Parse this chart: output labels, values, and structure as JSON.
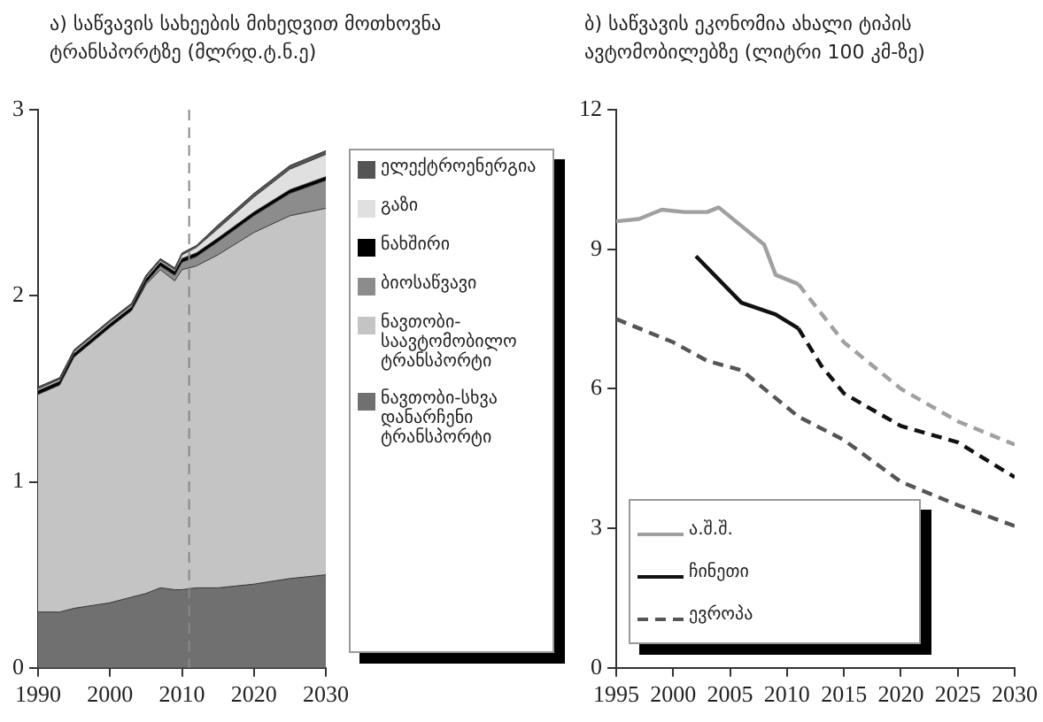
{
  "chart_data": [
    {
      "type": "area",
      "title": "ა) საწვავის სახეების მიხედვით მოთხოვნა ტრანსპორტზე (მლრდ.ტ.ნ.ე)",
      "stacked": true,
      "legend": "right",
      "x": [
        1990,
        1993,
        1995,
        2000,
        2003,
        2005,
        2007,
        2009,
        2010,
        2012,
        2015,
        2020,
        2025,
        2030
      ],
      "xlim": [
        1990,
        2030
      ],
      "xticks": [
        1990,
        2000,
        2010,
        2020,
        2030
      ],
      "ylim": [
        0,
        3
      ],
      "yticks": [
        0,
        1,
        2,
        3
      ],
      "ref_lines": [
        {
          "axis": "x",
          "value": 2011,
          "color": "#888888",
          "line_style": "dashed"
        }
      ],
      "series": [
        {
          "name": "ნავთობი-სხვა დანარჩენი ტრანსპორტი",
          "color": "#707070",
          "values": [
            0.3,
            0.3,
            0.32,
            0.35,
            0.38,
            0.4,
            0.43,
            0.42,
            0.42,
            0.43,
            0.43,
            0.45,
            0.48,
            0.5
          ]
        },
        {
          "name": "ნავთობი-საავტომობილო ტრანსპორტი",
          "color": "#c4c4c4",
          "values": [
            1.17,
            1.22,
            1.35,
            1.48,
            1.54,
            1.66,
            1.71,
            1.66,
            1.72,
            1.73,
            1.79,
            1.89,
            1.95,
            1.97
          ]
        },
        {
          "name": "ბიოსაწვავი",
          "color": "#8c8c8c",
          "values": [
            0,
            0,
            0,
            0,
            0,
            0.01,
            0.02,
            0.03,
            0.04,
            0.05,
            0.07,
            0.09,
            0.12,
            0.15
          ]
        },
        {
          "name": "ნახშირი",
          "color": "#000000",
          "values": [
            0.02,
            0.02,
            0.02,
            0.02,
            0.02,
            0.02,
            0.02,
            0.02,
            0.02,
            0.02,
            0.02,
            0.02,
            0.02,
            0.02
          ]
        },
        {
          "name": "გაზი",
          "color": "#e0e0e0",
          "values": [
            0.01,
            0.01,
            0.01,
            0.01,
            0.01,
            0.01,
            0.01,
            0.01,
            0.02,
            0.03,
            0.05,
            0.08,
            0.11,
            0.12
          ]
        },
        {
          "name": "ელექტროენერგია",
          "color": "#555555",
          "values": [
            0.01,
            0.01,
            0.01,
            0.01,
            0.01,
            0.01,
            0.01,
            0.01,
            0.01,
            0.01,
            0.02,
            0.02,
            0.02,
            0.02
          ]
        }
      ]
    },
    {
      "type": "line",
      "title": "ბ) საწვავის ეკონომია ახალი ტიპის ავტომობილებზე (ლიტრი 100 კმ-ზე)",
      "legend": "bottom left",
      "xlim": [
        1995,
        2030
      ],
      "xticks": [
        1995,
        2000,
        2005,
        2010,
        2015,
        2020,
        2025,
        2030
      ],
      "ylim": [
        0,
        12
      ],
      "yticks": [
        0,
        3,
        6,
        9,
        12
      ],
      "series": [
        {
          "name": "ა.შ.შ.",
          "color": "#a0a0a0",
          "x": [
            1995,
            1997,
            1999,
            2001,
            2003,
            2004,
            2006,
            2008,
            2009,
            2011
          ],
          "values": [
            9.6,
            9.65,
            9.85,
            9.8,
            9.8,
            9.9,
            9.5,
            9.1,
            8.45,
            8.25
          ]
        },
        {
          "color": "#a0a0a0",
          "line_style": "dashed",
          "x": [
            2011,
            2015,
            2020,
            2025,
            2030
          ],
          "values": [
            8.25,
            7.0,
            6.0,
            5.3,
            4.8
          ]
        },
        {
          "name": "ჩინეთი",
          "color": "#111111",
          "x": [
            2002,
            2006,
            2009,
            2011
          ],
          "values": [
            8.85,
            7.85,
            7.6,
            7.3
          ]
        },
        {
          "color": "#111111",
          "line_style": "dashed",
          "x": [
            2011,
            2013,
            2015,
            2020,
            2025,
            2030
          ],
          "values": [
            7.3,
            6.5,
            5.9,
            5.2,
            4.85,
            4.1
          ]
        },
        {
          "name": "ევროპა",
          "color": "#555555",
          "line_style": "dashed",
          "x": [
            1995,
            2000,
            2003,
            2006,
            2008,
            2011,
            2015,
            2020,
            2025,
            2030
          ],
          "values": [
            7.5,
            7.0,
            6.6,
            6.4,
            6.0,
            5.4,
            4.9,
            4.0,
            3.5,
            3.05
          ]
        }
      ]
    }
  ]
}
